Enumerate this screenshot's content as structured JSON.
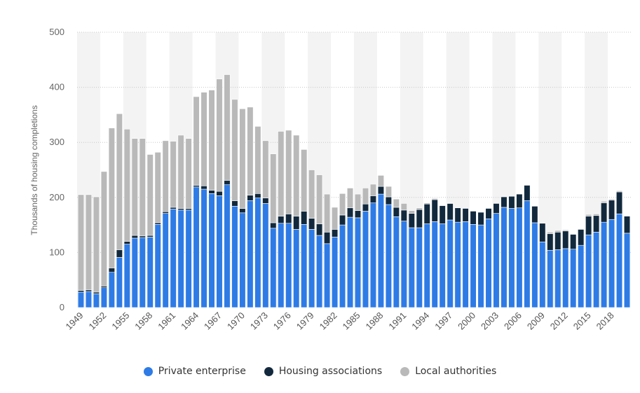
{
  "chart_data": {
    "type": "bar",
    "stacked": true,
    "ylabel": "Thousands of housing completions",
    "ylim": [
      0,
      500
    ],
    "yticks": [
      0,
      100,
      200,
      300,
      400,
      500
    ],
    "grid": true,
    "legend_position": "bottom",
    "x": [
      1949,
      1950,
      1951,
      1952,
      1953,
      1954,
      1955,
      1956,
      1957,
      1958,
      1959,
      1960,
      1961,
      1962,
      1963,
      1964,
      1965,
      1966,
      1967,
      1968,
      1969,
      1970,
      1971,
      1972,
      1973,
      1974,
      1975,
      1976,
      1977,
      1978,
      1979,
      1980,
      1981,
      1982,
      1983,
      1984,
      1985,
      1986,
      1987,
      1988,
      1989,
      1990,
      1991,
      1992,
      1993,
      1994,
      1995,
      1996,
      1997,
      1998,
      1999,
      2000,
      2001,
      2002,
      2003,
      2004,
      2005,
      2006,
      2007,
      2008,
      2009,
      2010,
      2011,
      2012,
      2013,
      2014,
      2015,
      2016,
      2017,
      2018,
      2019,
      2020
    ],
    "xtick_labels": [
      "1949",
      "1952",
      "1955",
      "1958",
      "1961",
      "1964",
      "1967",
      "1970",
      "1973",
      "1976",
      "1979",
      "1982",
      "1985",
      "1988",
      "1991",
      "1994",
      "1997",
      "2000",
      "2003",
      "2006",
      "2009",
      "2012",
      "2015",
      "2018"
    ],
    "series": [
      {
        "name": "Private enterprise",
        "color": "#2e7be6",
        "values": [
          28,
          29,
          25,
          36,
          64,
          91,
          115,
          126,
          127,
          128,
          151,
          171,
          179,
          177,
          177,
          219,
          215,
          207,
          203,
          223,
          184,
          172,
          194,
          199,
          189,
          144,
          153,
          153,
          142,
          151,
          142,
          131,
          116,
          128,
          150,
          164,
          163,
          175,
          190,
          206,
          187,
          165,
          157,
          145,
          145,
          152,
          156,
          152,
          159,
          155,
          156,
          151,
          150,
          161,
          171,
          182,
          180,
          181,
          194,
          154,
          119,
          104,
          105,
          107,
          106,
          113,
          132,
          137,
          155,
          160,
          170,
          135
        ]
      },
      {
        "name": "Housing associations",
        "color": "#12293d",
        "values": [
          3,
          3,
          3,
          3,
          8,
          14,
          5,
          5,
          3,
          3,
          3,
          3,
          3,
          3,
          3,
          3,
          6,
          6,
          8,
          8,
          10,
          8,
          10,
          8,
          10,
          10,
          13,
          17,
          24,
          24,
          20,
          21,
          21,
          14,
          18,
          17,
          13,
          13,
          13,
          14,
          14,
          17,
          20,
          26,
          33,
          36,
          40,
          33,
          30,
          26,
          24,
          24,
          23,
          19,
          18,
          19,
          22,
          25,
          28,
          30,
          34,
          30,
          32,
          32,
          27,
          29,
          34,
          30,
          35,
          35,
          40,
          31
        ]
      },
      {
        "name": "Local authorities",
        "color": "#b9b9b9",
        "values": [
          174,
          173,
          173,
          208,
          254,
          247,
          204,
          176,
          177,
          147,
          128,
          129,
          120,
          133,
          127,
          161,
          170,
          182,
          204,
          192,
          184,
          181,
          160,
          122,
          104,
          125,
          154,
          152,
          147,
          112,
          88,
          89,
          69,
          40,
          39,
          36,
          30,
          29,
          21,
          20,
          19,
          15,
          12,
          5,
          3,
          2,
          2,
          1,
          1,
          0,
          0,
          0,
          0,
          0,
          0,
          0,
          0,
          0,
          0,
          0,
          0,
          3,
          3,
          2,
          1,
          1,
          3,
          3,
          3,
          2,
          2,
          1
        ]
      }
    ]
  }
}
